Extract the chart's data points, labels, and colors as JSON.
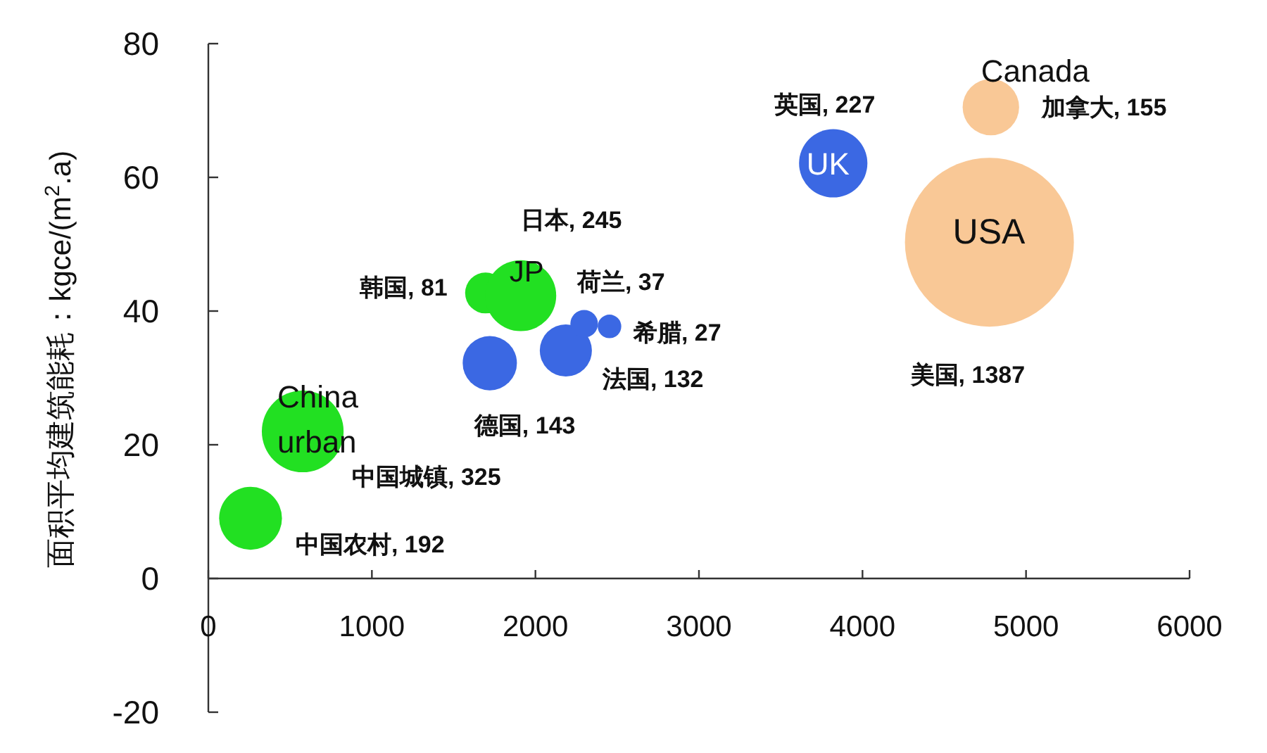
{
  "chart_data": {
    "type": "bubble",
    "ylabel": "面积平均建筑能耗：kgce/(m$^{2}$.a)",
    "xlim": [
      0,
      6000
    ],
    "xticks": [
      0,
      1000,
      2000,
      3000,
      4000,
      5000,
      6000
    ],
    "ylim": [
      -20,
      80
    ],
    "yticks": [
      -20,
      0,
      20,
      40,
      60,
      80
    ],
    "series": [
      {
        "color": "#22e022",
        "x": [
          258,
          577,
          1695,
          1910
        ],
        "values": [
          9,
          22,
          42.7,
          42.3
        ],
        "sizes": [
          192,
          325,
          81,
          245
        ],
        "value_labels": [
          "中国农村, 192",
          "中国城镇, 325",
          "韩国, 81",
          "日本, 245"
        ]
      },
      {
        "color": "#3b68e3",
        "x": [
          1721,
          2186,
          2298,
          2453,
          3821
        ],
        "values": [
          32.2,
          34.1,
          38.1,
          37.7,
          62.1
        ],
        "sizes": [
          143,
          132,
          37,
          27,
          227
        ],
        "value_labels": [
          "德国, 143",
          "法国, 132",
          "荷兰, 37",
          "希腊, 27",
          "英国, 227"
        ]
      },
      {
        "color": "#f9c896",
        "x": [
          4785,
          4776
        ],
        "values": [
          70.5,
          50.3
        ],
        "sizes": [
          155,
          1387
        ],
        "value_labels": [
          "加拿大, 155",
          "美国, 1387"
        ]
      }
    ],
    "annotations": [
      {
        "text": "China\nurban",
        "x": 577,
        "y": 22
      },
      {
        "text": "JP",
        "x": 1910,
        "y": 42.3
      },
      {
        "text": "UK",
        "x": 3821,
        "y": 62.1
      },
      {
        "text": "USA",
        "x": 4776,
        "y": 50.3
      },
      {
        "text": "Canada",
        "x": 4785,
        "y": 70.5
      }
    ]
  }
}
